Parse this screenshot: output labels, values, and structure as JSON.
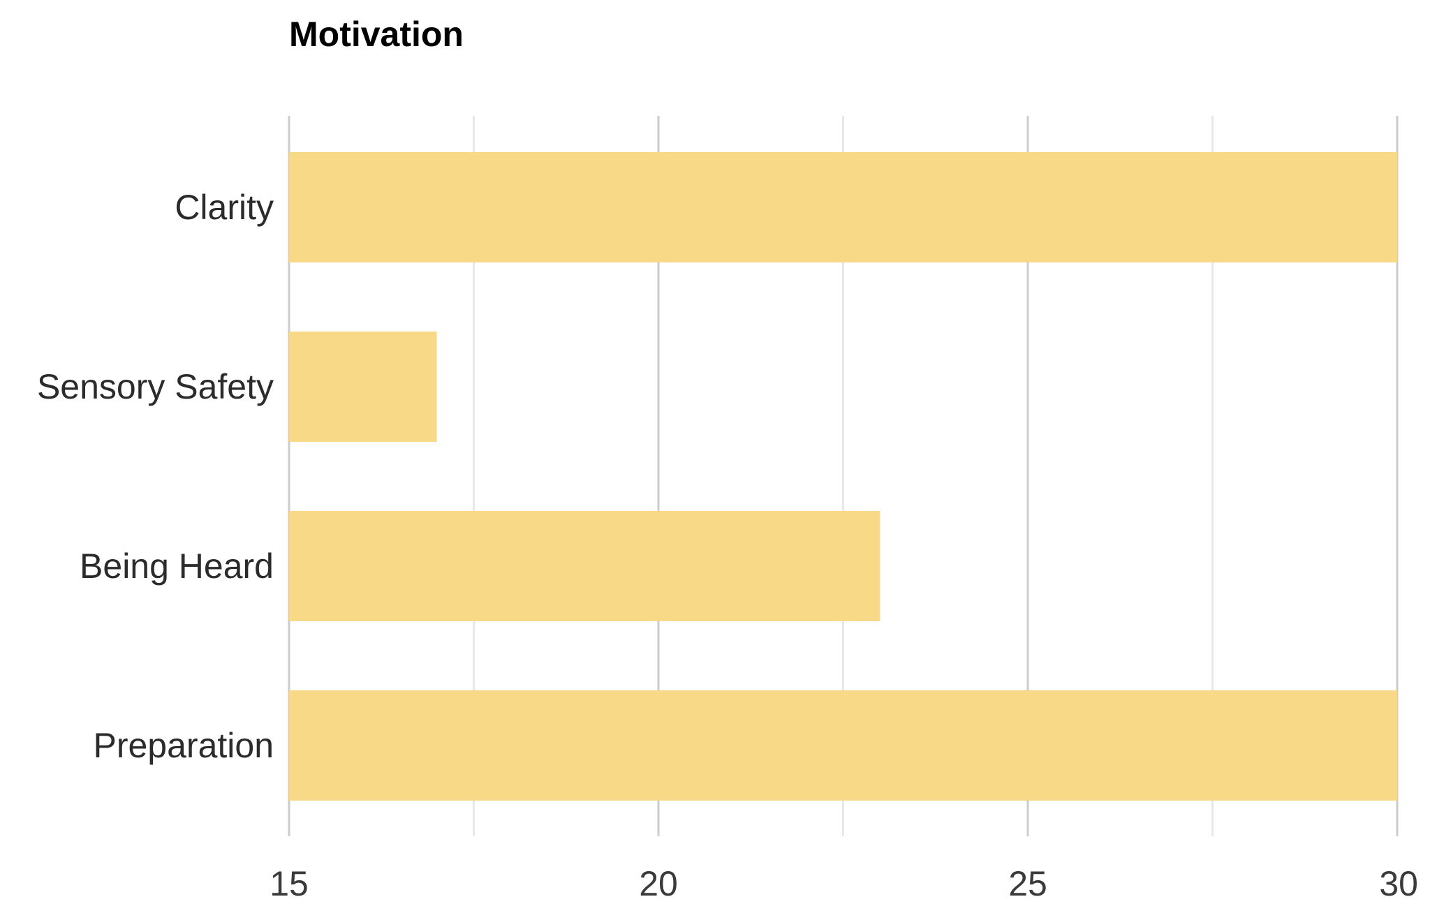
{
  "chart_data": {
    "type": "bar",
    "orientation": "horizontal",
    "title": "Motivation",
    "categories": [
      "Clarity",
      "Sensory Safety",
      "Being Heard",
      "Preparation"
    ],
    "values": [
      30,
      17,
      23,
      30
    ],
    "xlim": [
      15,
      30
    ],
    "xticks": [
      15,
      20,
      25,
      30
    ],
    "xtick_labels": [
      "15",
      "20",
      "25",
      "30"
    ],
    "minor_xticks": [
      17.5,
      22.5,
      27.5
    ],
    "grid": true,
    "legend": "none",
    "bar_color": "#f8d987",
    "major_grid_color": "#cccccc",
    "minor_grid_color": "#e8e8e8"
  }
}
